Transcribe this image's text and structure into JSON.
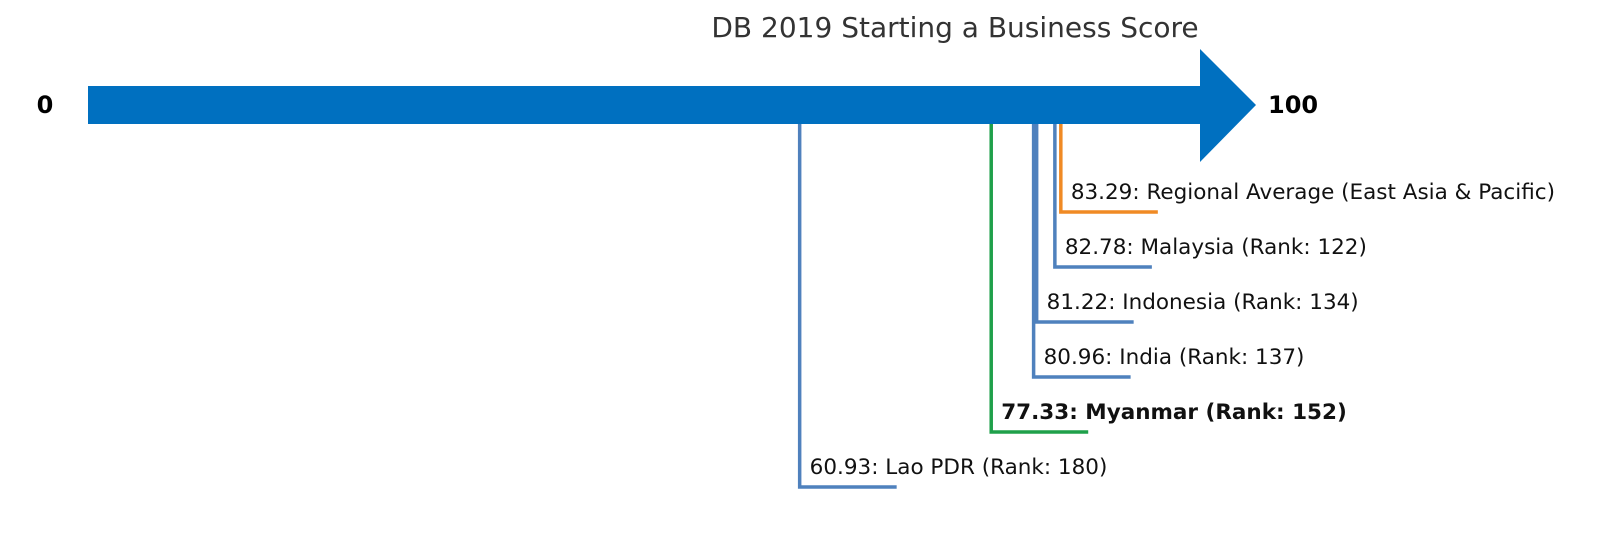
{
  "chart_data": {
    "type": "scale-markers",
    "title": "DB 2019 Starting a Business Score",
    "axis": {
      "min": 0,
      "max": 100,
      "min_label": "0",
      "max_label": "100"
    },
    "colors": {
      "arrow": "#0070C0",
      "economy": "#4F81BD",
      "highlight": "#1FA04A",
      "regional": "#F08A24"
    },
    "markers": [
      {
        "value": 83.29,
        "label": "83.29: Regional Average (East Asia & Pacific)",
        "kind": "regional",
        "bold": false
      },
      {
        "value": 82.78,
        "label": "82.78: Malaysia (Rank: 122)",
        "kind": "economy",
        "bold": false
      },
      {
        "value": 81.22,
        "label": "81.22: Indonesia (Rank: 134)",
        "kind": "economy",
        "bold": false
      },
      {
        "value": 80.96,
        "label": "80.96: India (Rank: 137)",
        "kind": "economy",
        "bold": false
      },
      {
        "value": 77.33,
        "label": "77.33: Myanmar (Rank: 152)",
        "kind": "highlight",
        "bold": true
      },
      {
        "value": 60.93,
        "label": "60.93: Lao PDR (Rank: 180)",
        "kind": "economy",
        "bold": false
      }
    ]
  }
}
